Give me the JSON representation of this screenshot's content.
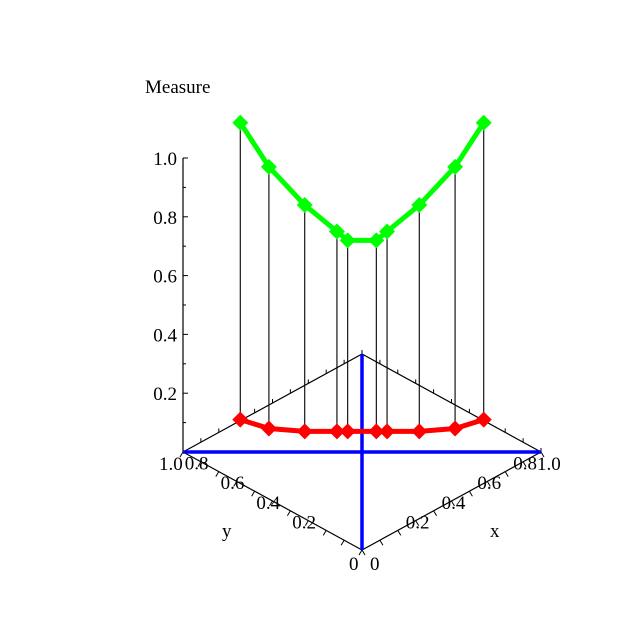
{
  "chart_data": {
    "type": "line",
    "projection": "3d",
    "zlabel": "Measure",
    "xlabel": "x",
    "ylabel": "y",
    "xlim": [
      0,
      1
    ],
    "ylim": [
      0,
      1
    ],
    "zlim": [
      0,
      1.0
    ],
    "x_ticks": [
      "0",
      "0.2",
      "0.4",
      "0.6",
      "0.8",
      "1.0"
    ],
    "y_ticks": [
      "0",
      "0.2",
      "0.4",
      "0.6",
      "0.8",
      "1.0"
    ],
    "z_ticks": [
      "0.2",
      "0.4",
      "0.6",
      "0.8",
      "1.0"
    ],
    "points_x": [
      0.16,
      0.24,
      0.34,
      0.43,
      0.46,
      0.54,
      0.57,
      0.66,
      0.76,
      0.84
    ],
    "points_y": [
      0.84,
      0.76,
      0.66,
      0.57,
      0.54,
      0.46,
      0.43,
      0.34,
      0.24,
      0.16
    ],
    "series": [
      {
        "values": [
          1.12,
          0.97,
          0.84,
          0.75,
          0.72,
          0.72,
          0.75,
          0.84,
          0.97,
          1.12
        ],
        "color": "#00ff00",
        "marker": "diamond"
      },
      {
        "values": [
          0.11,
          0.08,
          0.07,
          0.07,
          0.07,
          0.07,
          0.07,
          0.07,
          0.08,
          0.11
        ],
        "color": "#ff0000",
        "marker": "diamond"
      }
    ],
    "reference_lines": [
      {
        "from": [
          0,
          1,
          0
        ],
        "to": [
          1,
          0,
          0
        ],
        "color": "#0000ff"
      },
      {
        "from": [
          0,
          0,
          0
        ],
        "to": [
          1,
          1,
          0
        ],
        "color": "#0000ff"
      }
    ],
    "grid": false
  }
}
